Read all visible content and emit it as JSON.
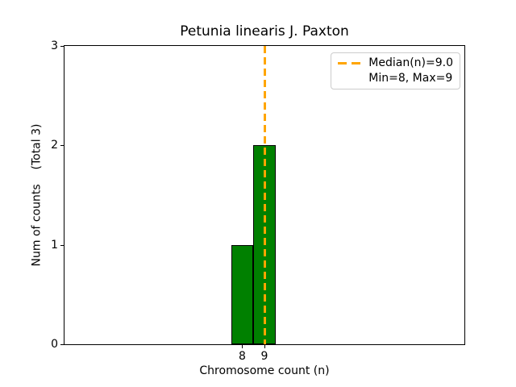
{
  "colors": {
    "bar_fill": "#008000",
    "bar_edge": "#000000",
    "median_line": "#FFA500",
    "legend_border": "#cccccc",
    "text": "#000000",
    "background": "#ffffff"
  },
  "chart_data": {
    "type": "bar",
    "title": "Petunia linearis J. Paxton",
    "xlabel": "Chromosome count (n)",
    "ylabel": "Num of counts    (Total 3)",
    "categories": [
      8,
      9
    ],
    "values": [
      1,
      2
    ],
    "bar_width": 1.0,
    "median": 9.0,
    "min": 8,
    "max": 9,
    "total": 3,
    "xlim": [
      0,
      18
    ],
    "ylim": [
      0,
      3
    ],
    "xticks": [
      8,
      9
    ],
    "yticks": [
      0,
      1,
      2,
      3
    ],
    "grid": false,
    "legend_position": "upper right",
    "legend_entries": [
      "Median(n)=9.0",
      "Min=8, Max=9"
    ]
  }
}
